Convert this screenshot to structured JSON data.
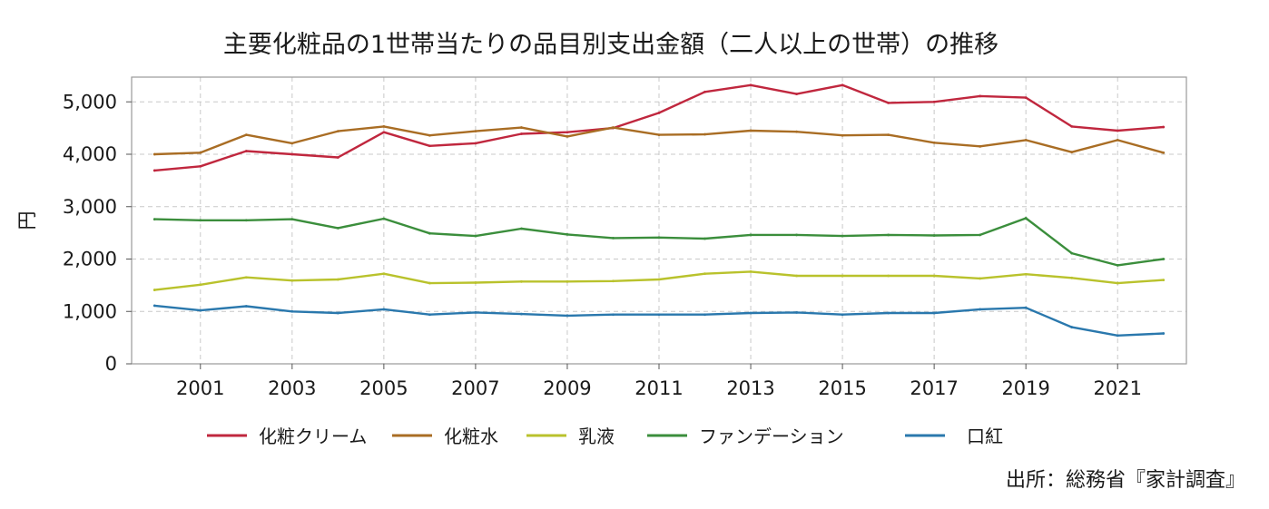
{
  "chart_data": {
    "type": "line",
    "title": "主要化粧品の1世帯当たりの品目別支出金額（二人以上の世帯）の推移",
    "ylabel": "円",
    "xlabel": "",
    "ylim": [
      0,
      5500
    ],
    "yticks": [
      0,
      1000,
      2000,
      3000,
      4000,
      5000
    ],
    "ytick_labels": [
      "0",
      "1,000",
      "2,000",
      "3,000",
      "4,000",
      "5,000"
    ],
    "x": [
      2000,
      2001,
      2002,
      2003,
      2004,
      2005,
      2006,
      2007,
      2008,
      2009,
      2010,
      2011,
      2012,
      2013,
      2014,
      2015,
      2016,
      2017,
      2018,
      2019,
      2020,
      2021,
      2022
    ],
    "xticks": [
      2001,
      2003,
      2005,
      2007,
      2009,
      2011,
      2013,
      2015,
      2017,
      2019,
      2021
    ],
    "xtick_labels": [
      "2001",
      "2003",
      "2005",
      "2007",
      "2009",
      "2011",
      "2013",
      "2015",
      "2017",
      "2019",
      "2021"
    ],
    "grid": true,
    "legend_position": "bottom",
    "series": [
      {
        "name": "化粧クリーム",
        "color": "#c0273e",
        "values": [
          3690,
          3770,
          4060,
          4000,
          3940,
          4420,
          4160,
          4210,
          4390,
          4420,
          4500,
          4790,
          5190,
          5320,
          5150,
          5320,
          4980,
          5000,
          5110,
          5080,
          4530,
          4450,
          4520
        ]
      },
      {
        "name": "化粧水",
        "color": "#a96d24",
        "values": [
          4000,
          4030,
          4370,
          4210,
          4440,
          4530,
          4360,
          4440,
          4510,
          4340,
          4510,
          4370,
          4380,
          4450,
          4430,
          4360,
          4370,
          4220,
          4150,
          4270,
          4040,
          4270,
          4030
        ]
      },
      {
        "name": "乳液",
        "color": "#b9c22c",
        "values": [
          1410,
          1510,
          1650,
          1590,
          1610,
          1720,
          1540,
          1550,
          1570,
          1570,
          1580,
          1610,
          1720,
          1760,
          1680,
          1680,
          1680,
          1680,
          1630,
          1710,
          1640,
          1540,
          1600
        ]
      },
      {
        "name": "ファンデーション",
        "color": "#3b8e3c",
        "values": [
          2760,
          2740,
          2740,
          2760,
          2590,
          2770,
          2490,
          2440,
          2580,
          2470,
          2400,
          2410,
          2390,
          2460,
          2460,
          2440,
          2460,
          2450,
          2460,
          2780,
          2110,
          1880,
          2000
        ]
      },
      {
        "name": "口紅",
        "color": "#2a78ad",
        "values": [
          1110,
          1020,
          1100,
          1000,
          970,
          1040,
          940,
          980,
          950,
          920,
          940,
          940,
          940,
          970,
          980,
          940,
          970,
          970,
          1040,
          1070,
          700,
          540,
          580
        ]
      }
    ]
  },
  "source": "出所：総務省『家計調査』"
}
